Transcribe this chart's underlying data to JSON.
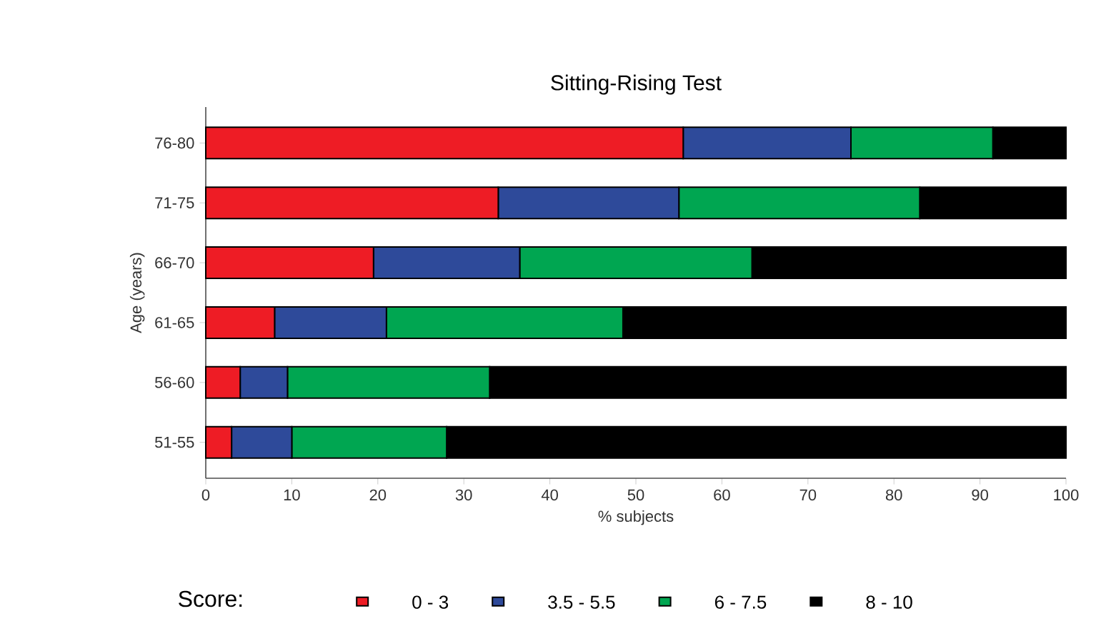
{
  "chart_data": {
    "type": "bar",
    "orientation": "horizontal",
    "stacked": true,
    "title": "Sitting-Rising Test",
    "xlabel": "% subjects",
    "ylabel": "Age (years)",
    "legend_title": "Score:",
    "legend": "bottom",
    "categories": [
      "76-80",
      "71-75",
      "66-70",
      "61-65",
      "56-60",
      "51-55"
    ],
    "series": [
      {
        "name": "0 - 3",
        "color": "#ee1c25",
        "values": [
          55.5,
          34,
          19.5,
          8,
          4,
          3
        ]
      },
      {
        "name": "3.5 - 5.5",
        "color": "#2e4a9a",
        "values": [
          19.5,
          21,
          17,
          13,
          5.5,
          7
        ]
      },
      {
        "name": "6 - 7.5",
        "color": "#00a651",
        "values": [
          16.5,
          28,
          27,
          27.5,
          23.5,
          18
        ]
      },
      {
        "name": "8 - 10",
        "color": "#000000",
        "values": [
          8.5,
          17,
          36.5,
          51.5,
          67,
          72
        ]
      }
    ],
    "xlim": [
      0,
      100
    ],
    "xticks": [
      0,
      10,
      20,
      30,
      40,
      50,
      60,
      70,
      80,
      90,
      100
    ]
  }
}
